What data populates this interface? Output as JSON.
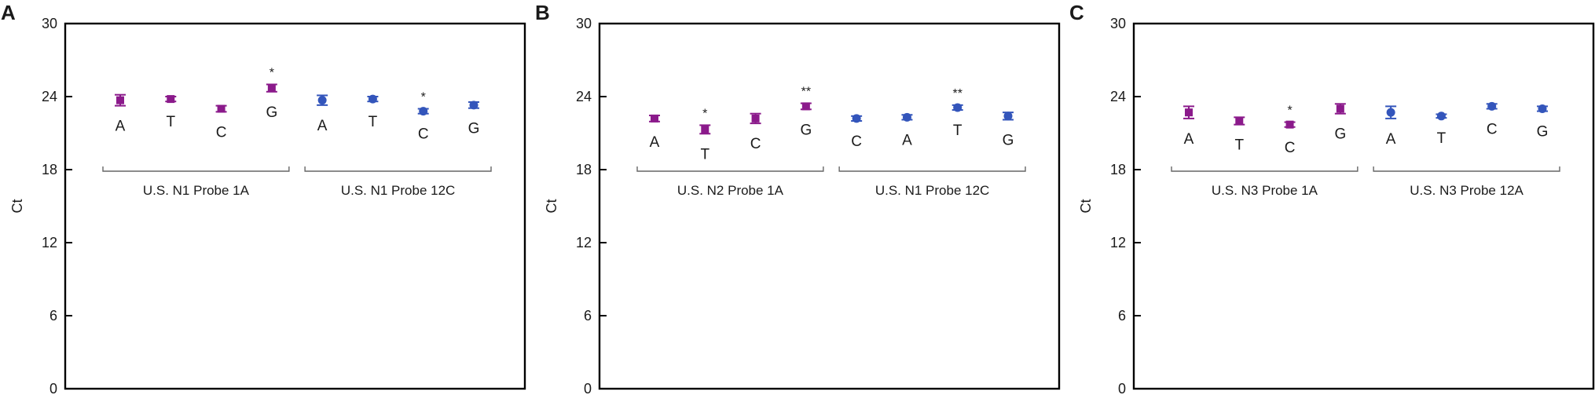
{
  "chart_data": [
    {
      "type": "scatter",
      "panel": "A",
      "ylabel": "Ct",
      "ylim": [
        0,
        30
      ],
      "yticks": [
        0,
        6,
        12,
        18,
        24,
        30
      ],
      "grid": false,
      "points": [
        {
          "label": "A",
          "value": 23.7,
          "err": 0.45,
          "group": 0,
          "sig": ""
        },
        {
          "label": "T",
          "value": 23.8,
          "err": 0.2,
          "group": 0,
          "sig": ""
        },
        {
          "label": "C",
          "value": 23.0,
          "err": 0.25,
          "group": 0,
          "sig": ""
        },
        {
          "label": "G",
          "value": 24.7,
          "err": 0.3,
          "group": 0,
          "sig": "*"
        },
        {
          "label": "A",
          "value": 23.7,
          "err": 0.4,
          "group": 1,
          "sig": ""
        },
        {
          "label": "T",
          "value": 23.8,
          "err": 0.2,
          "group": 1,
          "sig": ""
        },
        {
          "label": "C",
          "value": 22.8,
          "err": 0.2,
          "group": 1,
          "sig": "*"
        },
        {
          "label": "G",
          "value": 23.3,
          "err": 0.25,
          "group": 1,
          "sig": ""
        }
      ],
      "groups": [
        {
          "name": "U.S. N1 Probe 1A",
          "color": "#8b1a8b"
        },
        {
          "name": "U.S. N1 Probe 12C",
          "color": "#3355bb"
        }
      ]
    },
    {
      "type": "scatter",
      "panel": "B",
      "ylabel": "Ct",
      "ylim": [
        0,
        30
      ],
      "yticks": [
        0,
        6,
        12,
        18,
        24,
        30
      ],
      "grid": false,
      "points": [
        {
          "label": "A",
          "value": 22.2,
          "err": 0.25,
          "group": 0,
          "sig": ""
        },
        {
          "label": "T",
          "value": 21.3,
          "err": 0.35,
          "group": 0,
          "sig": "*"
        },
        {
          "label": "C",
          "value": 22.2,
          "err": 0.4,
          "group": 0,
          "sig": ""
        },
        {
          "label": "G",
          "value": 23.2,
          "err": 0.25,
          "group": 0,
          "sig": "**"
        },
        {
          "label": "C",
          "value": 22.2,
          "err": 0.2,
          "group": 1,
          "sig": ""
        },
        {
          "label": "A",
          "value": 22.3,
          "err": 0.2,
          "group": 1,
          "sig": ""
        },
        {
          "label": "T",
          "value": 23.1,
          "err": 0.2,
          "group": 1,
          "sig": "**"
        },
        {
          "label": "G",
          "value": 22.4,
          "err": 0.3,
          "group": 1,
          "sig": ""
        }
      ],
      "groups": [
        {
          "name": "U.S. N2 Probe 1A",
          "color": "#8b1a8b"
        },
        {
          "name": "U.S. N1 Probe 12C",
          "color": "#3355bb"
        }
      ]
    },
    {
      "type": "scatter",
      "panel": "C",
      "ylabel": "Ct",
      "ylim": [
        0,
        30
      ],
      "yticks": [
        0,
        6,
        12,
        18,
        24,
        30
      ],
      "grid": false,
      "points": [
        {
          "label": "A",
          "value": 22.7,
          "err": 0.5,
          "group": 0,
          "sig": ""
        },
        {
          "label": "T",
          "value": 22.0,
          "err": 0.3,
          "group": 0,
          "sig": ""
        },
        {
          "label": "C",
          "value": 21.7,
          "err": 0.2,
          "group": 0,
          "sig": "*"
        },
        {
          "label": "G",
          "value": 23.0,
          "err": 0.4,
          "group": 0,
          "sig": ""
        },
        {
          "label": "A",
          "value": 22.7,
          "err": 0.5,
          "group": 1,
          "sig": ""
        },
        {
          "label": "T",
          "value": 22.4,
          "err": 0.15,
          "group": 1,
          "sig": ""
        },
        {
          "label": "C",
          "value": 23.2,
          "err": 0.2,
          "group": 1,
          "sig": ""
        },
        {
          "label": "G",
          "value": 23.0,
          "err": 0.2,
          "group": 1,
          "sig": ""
        }
      ],
      "groups": [
        {
          "name": "U.S. N3 Probe 1A",
          "color": "#8b1a8b"
        },
        {
          "name": "U.S. N3 Probe 12A",
          "color": "#3355bb"
        }
      ]
    }
  ]
}
